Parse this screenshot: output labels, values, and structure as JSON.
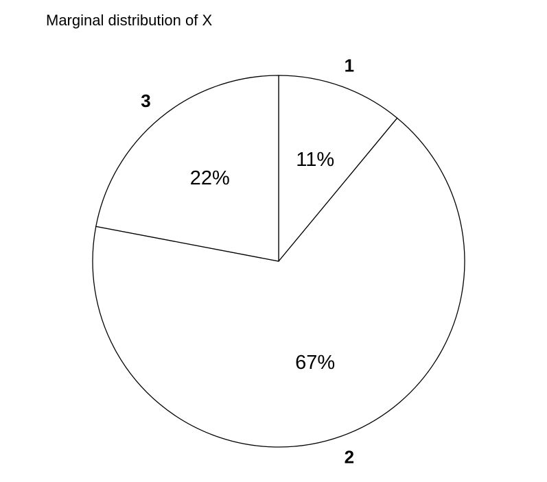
{
  "chart_data": {
    "type": "pie",
    "title": "Marginal distribution of X",
    "categories": [
      "1",
      "2",
      "3"
    ],
    "values": [
      11,
      67,
      22
    ],
    "value_labels": [
      "11%",
      "67%",
      "22%"
    ],
    "start": "12 o'clock",
    "direction": "clockwise",
    "colors": {
      "slice_fill": "#ffffff",
      "slice_stroke": "#000000",
      "text": "#000000"
    }
  }
}
